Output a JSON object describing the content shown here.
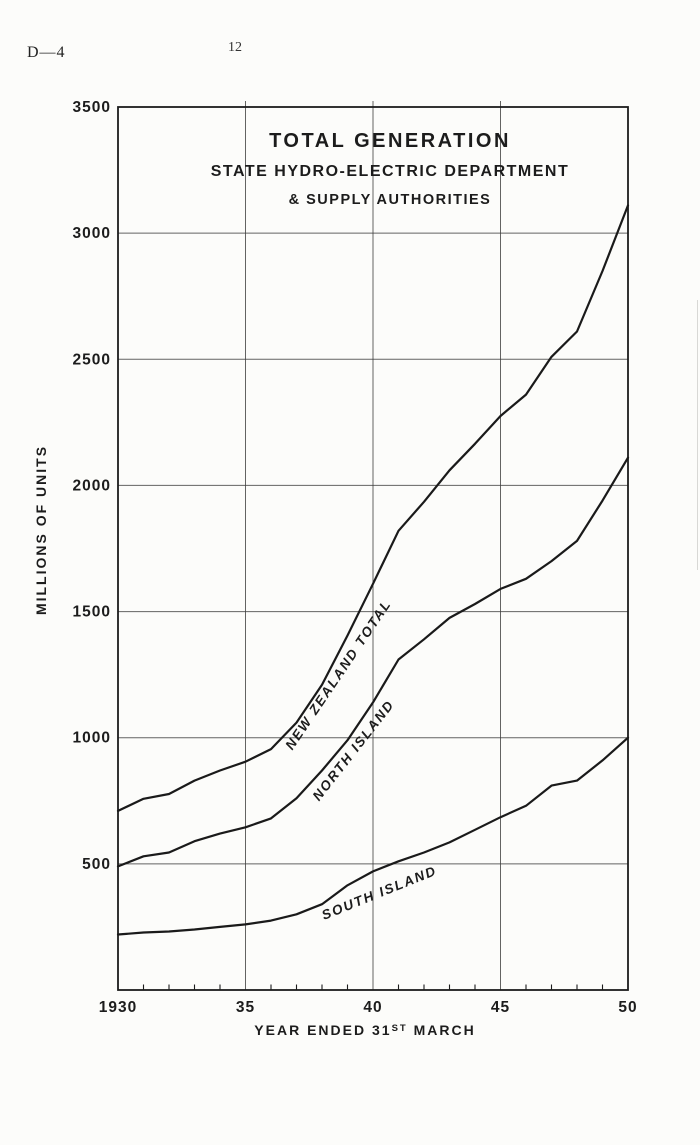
{
  "page": {
    "doc_ref": "D—4",
    "page_number": "12"
  },
  "chart_data": {
    "type": "line",
    "title": "TOTAL GENERATION",
    "subtitle1": "STATE HYDRO-ELECTRIC DEPARTMENT",
    "subtitle2": "& SUPPLY AUTHORITIES",
    "ylabel": "MILLIONS OF UNITS",
    "xlabel_prefix": "YEAR ENDED 31",
    "xlabel_sup": "ST",
    "xlabel_suffix": " MARCH",
    "xlim": [
      1930,
      1950
    ],
    "ylim": [
      0,
      3500
    ],
    "grid": {
      "vertical_years": [
        1935,
        1940,
        1945
      ],
      "horizontal_values": [
        500,
        1000,
        1500,
        2000,
        2500,
        3000
      ]
    },
    "y_ticks": [
      {
        "value": 500,
        "label": "500"
      },
      {
        "value": 1000,
        "label": "1000"
      },
      {
        "value": 1500,
        "label": "1500"
      },
      {
        "value": 2000,
        "label": "2000"
      },
      {
        "value": 2500,
        "label": "2500"
      },
      {
        "value": 3000,
        "label": "3000"
      },
      {
        "value": 3500,
        "label": "3500"
      }
    ],
    "x_major_ticks": [
      {
        "year": 1930,
        "label": "1930"
      },
      {
        "year": 1935,
        "label": "35"
      },
      {
        "year": 1940,
        "label": "40"
      },
      {
        "year": 1945,
        "label": "45"
      },
      {
        "year": 1950,
        "label": "50"
      }
    ],
    "x": [
      1930,
      1931,
      1932,
      1933,
      1934,
      1935,
      1936,
      1937,
      1938,
      1939,
      1940,
      1941,
      1942,
      1943,
      1944,
      1945,
      1946,
      1947,
      1948,
      1949,
      1950
    ],
    "series": [
      {
        "name": "NEW ZEALAND TOTAL",
        "values": [
          710,
          758,
          777,
          830,
          870,
          905,
          955,
          1060,
          1210,
          1405,
          1610,
          1820,
          1935,
          2060,
          2165,
          2275,
          2360,
          2510,
          2610,
          2850,
          3110
        ],
        "label": {
          "x": 342,
          "y": 677,
          "rotate": -56
        }
      },
      {
        "name": "NORTH ISLAND",
        "values": [
          490,
          530,
          545,
          590,
          620,
          645,
          680,
          760,
          870,
          990,
          1140,
          1310,
          1390,
          1475,
          1530,
          1590,
          1630,
          1700,
          1780,
          1940,
          2110
        ],
        "label": {
          "x": 357,
          "y": 753,
          "rotate": -52
        }
      },
      {
        "name": "SOUTH ISLAND",
        "values": [
          220,
          228,
          232,
          240,
          250,
          260,
          275,
          300,
          340,
          415,
          470,
          510,
          545,
          585,
          635,
          685,
          730,
          810,
          830,
          910,
          1000
        ],
        "label": {
          "x": 381,
          "y": 897,
          "rotate": -22
        }
      }
    ],
    "ink_color": "#1a1a1a",
    "paper_color": "#fcfcfa"
  }
}
